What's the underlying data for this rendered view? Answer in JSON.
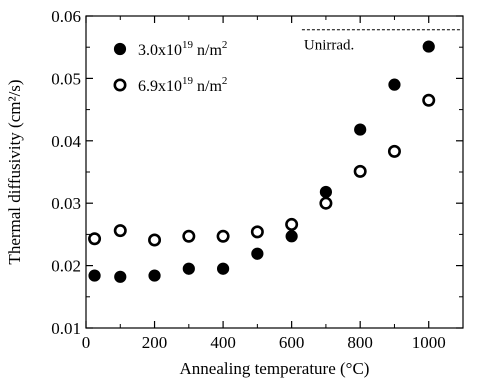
{
  "chart_data": {
    "type": "scatter",
    "xlabel": "Annealing temperature (°C)",
    "ylabel": "Thermal diffusivity (cm²/s)",
    "xlim": [
      0,
      1100
    ],
    "ylim": [
      0.01,
      0.06
    ],
    "xticks": [
      0,
      200,
      400,
      600,
      800,
      1000
    ],
    "xtick_labels": [
      "0",
      "200",
      "400",
      "600",
      "800",
      "1000"
    ],
    "yticks": [
      0.01,
      0.02,
      0.03,
      0.04,
      0.05,
      0.06
    ],
    "ytick_labels": [
      "0.01",
      "0.02",
      "0.03",
      "0.04",
      "0.05",
      "0.06"
    ],
    "grid": false,
    "legend_position": "top-left",
    "series": [
      {
        "name": "3.0x10^19 n/m^2",
        "label_base": "3.0x10",
        "label_exp": "19",
        "label_unit": " n/m",
        "label_unit_exp": "2",
        "marker": "filled-circle",
        "x": [
          25,
          100,
          200,
          300,
          400,
          500,
          600,
          700,
          800,
          900,
          1000
        ],
        "y": [
          0.0184,
          0.0182,
          0.0184,
          0.0195,
          0.0195,
          0.0219,
          0.0247,
          0.0318,
          0.0418,
          0.049,
          0.0551
        ]
      },
      {
        "name": "6.9x10^19 n/m^2",
        "label_base": "6.9x10",
        "label_exp": "19",
        "label_unit": " n/m",
        "label_unit_exp": "2",
        "marker": "open-circle",
        "x": [
          25,
          100,
          200,
          300,
          400,
          500,
          600,
          700,
          800,
          900,
          1000
        ],
        "y": [
          0.0243,
          0.0256,
          0.0241,
          0.0247,
          0.0247,
          0.0254,
          0.0266,
          0.03,
          0.0351,
          0.0383,
          0.0465
        ]
      }
    ],
    "reference_line": {
      "label": "Unirrad.",
      "y": 0.0578,
      "x_start": 630,
      "x_end": 1100,
      "style": "dashed"
    }
  }
}
